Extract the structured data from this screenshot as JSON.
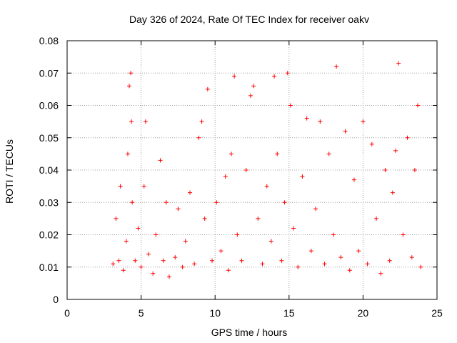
{
  "chart_data": {
    "type": "scatter",
    "title": "Day 326 of 2024, Rate Of TEC Index for receiver oakv",
    "xlabel": "GPS time / hours",
    "ylabel": "ROTI / TECUs",
    "xlim": [
      0,
      25
    ],
    "ylim": [
      0,
      0.08
    ],
    "x_ticks": [
      "0",
      "5",
      "10",
      "15",
      "20",
      "25"
    ],
    "y_ticks": [
      "0",
      "0.01",
      "0.02",
      "0.03",
      "0.04",
      "0.05",
      "0.06",
      "0.07",
      "0.08"
    ],
    "grid": true,
    "marker": "+",
    "color": "#ff0000",
    "series": [
      {
        "x": [
          3.1,
          3.3,
          3.5,
          3.6,
          3.8,
          4.0,
          4.1,
          4.2,
          4.3,
          4.35,
          4.4,
          4.6,
          4.8,
          5.0,
          5.2,
          5.3,
          5.5,
          5.8,
          6.0,
          6.3,
          6.5,
          6.7,
          6.9,
          7.3,
          7.5,
          7.8,
          8.0,
          8.3,
          8.6,
          8.9,
          9.1,
          9.3,
          9.5,
          9.8,
          10.1,
          10.4,
          10.7,
          10.9,
          11.1,
          11.3,
          11.5,
          11.8,
          12.1,
          12.4,
          12.6,
          12.9,
          13.2,
          13.5,
          13.8,
          14.0,
          14.2,
          14.5,
          14.7,
          14.9,
          15.1,
          15.3,
          15.6,
          15.9,
          16.2,
          16.5,
          16.8,
          17.1,
          17.4,
          17.7,
          18.0,
          18.2,
          18.5,
          18.8,
          19.1,
          19.4,
          19.7,
          20.0,
          20.3,
          20.6,
          20.9,
          21.2,
          21.5,
          21.8,
          22.0,
          22.2,
          22.4,
          22.7,
          23.0,
          23.3,
          23.5,
          23.7,
          23.9
        ],
        "y": [
          0.011,
          0.025,
          0.012,
          0.035,
          0.009,
          0.018,
          0.045,
          0.066,
          0.07,
          0.055,
          0.03,
          0.012,
          0.022,
          0.01,
          0.035,
          0.055,
          0.014,
          0.008,
          0.02,
          0.043,
          0.012,
          0.03,
          0.007,
          0.013,
          0.028,
          0.01,
          0.018,
          0.033,
          0.011,
          0.05,
          0.055,
          0.025,
          0.065,
          0.012,
          0.03,
          0.015,
          0.038,
          0.009,
          0.045,
          0.069,
          0.02,
          0.012,
          0.04,
          0.063,
          0.066,
          0.025,
          0.011,
          0.035,
          0.018,
          0.069,
          0.045,
          0.012,
          0.03,
          0.07,
          0.06,
          0.022,
          0.01,
          0.038,
          0.056,
          0.015,
          0.028,
          0.055,
          0.011,
          0.045,
          0.02,
          0.072,
          0.013,
          0.052,
          0.009,
          0.037,
          0.015,
          0.055,
          0.011,
          0.048,
          0.025,
          0.008,
          0.04,
          0.012,
          0.033,
          0.046,
          0.073,
          0.02,
          0.05,
          0.013,
          0.04,
          0.06,
          0.01
        ]
      }
    ]
  }
}
